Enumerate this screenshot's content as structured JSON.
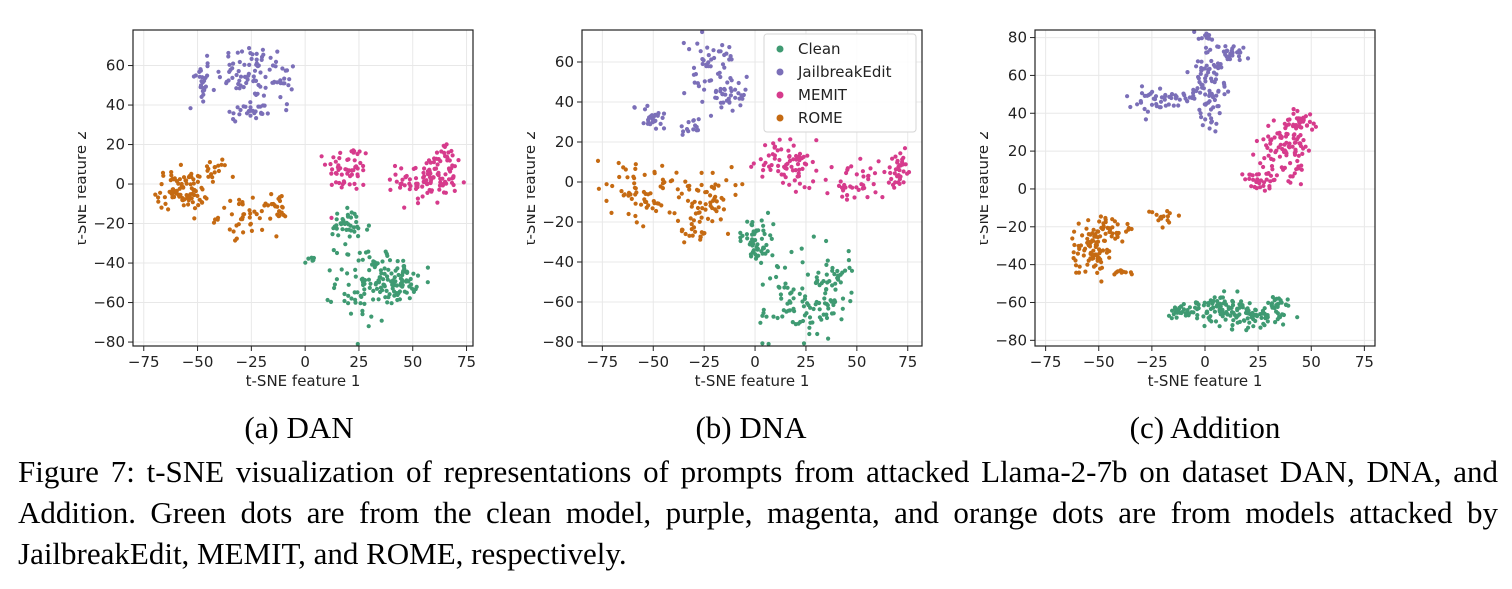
{
  "colors": {
    "clean": "#3f9a72",
    "jailbreak": "#7b6fb8",
    "memit": "#d63b8c",
    "rome": "#c56a12"
  },
  "caption": "Figure 7: t-SNE visualization of representations of prompts from attacked Llama-2-7b on dataset DAN, DNA, and Addition. Green dots are from the clean model, purple, magenta, and orange dots are from models attacked by JailbreakEdit, MEMIT, and ROME, respectively.",
  "chart_data": [
    {
      "type": "scatter",
      "subcaption": "(a) DAN",
      "xlabel": "t-SNE feature 1",
      "ylabel": "t-SNE feature 2",
      "xlim": [
        -80,
        78
      ],
      "ylim": [
        -82,
        78
      ],
      "xticks": [
        -75,
        -50,
        -25,
        0,
        25,
        50,
        75
      ],
      "yticks": [
        -80,
        -60,
        -40,
        -20,
        0,
        20,
        40,
        60
      ],
      "grid": true,
      "legend": null,
      "clusters": [
        {
          "series": "JailbreakEdit",
          "cx": -48,
          "cy": 52,
          "sx": 2,
          "sy": 6,
          "n": 25
        },
        {
          "series": "JailbreakEdit",
          "cx": -25,
          "cy": 57,
          "sx": 8,
          "sy": 7,
          "n": 70
        },
        {
          "series": "JailbreakEdit",
          "cx": -25,
          "cy": 37,
          "sx": 7,
          "sy": 3,
          "n": 30
        },
        {
          "series": "JailbreakEdit",
          "cx": -10,
          "cy": 50,
          "sx": 3,
          "sy": 7,
          "n": 15
        },
        {
          "series": "MEMIT",
          "cx": 20,
          "cy": 8,
          "sx": 5,
          "sy": 6,
          "n": 55
        },
        {
          "series": "MEMIT",
          "cx": 57,
          "cy": 2,
          "sx": 7,
          "sy": 6,
          "n": 95
        },
        {
          "series": "MEMIT",
          "cx": 65,
          "cy": 12,
          "sx": 3,
          "sy": 4,
          "n": 20
        },
        {
          "series": "ROME",
          "cx": -57,
          "cy": -3,
          "sx": 6,
          "sy": 5,
          "n": 90
        },
        {
          "series": "ROME",
          "cx": -42,
          "cy": 7,
          "sx": 3,
          "sy": 3,
          "n": 15
        },
        {
          "series": "ROME",
          "cx": -26,
          "cy": -16,
          "sx": 7,
          "sy": 5,
          "n": 45
        },
        {
          "series": "ROME",
          "cx": -11,
          "cy": -13,
          "sx": 2,
          "sy": 3,
          "n": 15
        },
        {
          "series": "Clean",
          "cx": 20,
          "cy": -22,
          "sx": 5,
          "sy": 5,
          "n": 40
        },
        {
          "series": "Clean",
          "cx": 42,
          "cy": -49,
          "sx": 5,
          "sy": 5,
          "n": 85
        },
        {
          "series": "Clean",
          "cx": 28,
          "cy": -50,
          "sx": 7,
          "sy": 10,
          "n": 70
        },
        {
          "series": "Clean",
          "cx": 2,
          "cy": -39,
          "sx": 1,
          "sy": 1,
          "n": 6
        }
      ]
    },
    {
      "type": "scatter",
      "subcaption": "(b) DNA",
      "xlabel": "t-SNE feature 1",
      "ylabel": "t-SNE feature 2",
      "xlim": [
        -85,
        82
      ],
      "ylim": [
        -82,
        76
      ],
      "xticks": [
        -75,
        -50,
        -25,
        0,
        25,
        50,
        75
      ],
      "yticks": [
        -80,
        -60,
        -40,
        -20,
        0,
        20,
        40,
        60
      ],
      "grid": true,
      "legend": {
        "position": "top-right",
        "entries": [
          "Clean",
          "JailbreakEdit",
          "MEMIT",
          "ROME"
        ]
      },
      "clusters": [
        {
          "series": "JailbreakEdit",
          "cx": -50,
          "cy": 32,
          "sx": 3,
          "sy": 3,
          "n": 30
        },
        {
          "series": "JailbreakEdit",
          "cx": -32,
          "cy": 28,
          "sx": 3,
          "sy": 3,
          "n": 15
        },
        {
          "series": "JailbreakEdit",
          "cx": -22,
          "cy": 60,
          "sx": 6,
          "sy": 6,
          "n": 40
        },
        {
          "series": "JailbreakEdit",
          "cx": -13,
          "cy": 44,
          "sx": 6,
          "sy": 5,
          "n": 40
        },
        {
          "series": "MEMIT",
          "cx": 17,
          "cy": 10,
          "sx": 8,
          "sy": 6,
          "n": 70
        },
        {
          "series": "MEMIT",
          "cx": 50,
          "cy": 0,
          "sx": 8,
          "sy": 5,
          "n": 40
        },
        {
          "series": "MEMIT",
          "cx": 70,
          "cy": 8,
          "sx": 4,
          "sy": 5,
          "n": 35
        },
        {
          "series": "ROME",
          "cx": -55,
          "cy": -5,
          "sx": 12,
          "sy": 8,
          "n": 70
        },
        {
          "series": "ROME",
          "cx": -22,
          "cy": -10,
          "sx": 6,
          "sy": 8,
          "n": 55
        },
        {
          "series": "ROME",
          "cx": -30,
          "cy": -25,
          "sx": 3,
          "sy": 4,
          "n": 15
        },
        {
          "series": "Clean",
          "cx": 2,
          "cy": -30,
          "sx": 4,
          "sy": 5,
          "n": 55
        },
        {
          "series": "Clean",
          "cx": 25,
          "cy": -60,
          "sx": 10,
          "sy": 10,
          "n": 90
        },
        {
          "series": "Clean",
          "cx": 38,
          "cy": -48,
          "sx": 5,
          "sy": 8,
          "n": 40
        }
      ]
    },
    {
      "type": "scatter",
      "subcaption": "(c) Addition",
      "xlabel": "t-SNE feature 1",
      "ylabel": "t-SNE feature 2",
      "xlim": [
        -80,
        80
      ],
      "ylim": [
        -83,
        84
      ],
      "xticks": [
        -75,
        -50,
        -25,
        0,
        25,
        50,
        75
      ],
      "yticks": [
        -80,
        -60,
        -40,
        -20,
        0,
        20,
        40,
        60,
        80
      ],
      "grid": true,
      "legend": null,
      "clusters": [
        {
          "series": "JailbreakEdit",
          "cx": -20,
          "cy": 48,
          "sx": 10,
          "sy": 4,
          "n": 50
        },
        {
          "series": "JailbreakEdit",
          "cx": 2,
          "cy": 55,
          "sx": 4,
          "sy": 11,
          "n": 90
        },
        {
          "series": "JailbreakEdit",
          "cx": 13,
          "cy": 72,
          "sx": 3,
          "sy": 2,
          "n": 25
        },
        {
          "series": "JailbreakEdit",
          "cx": 0,
          "cy": 80,
          "sx": 2,
          "sy": 1,
          "n": 10
        },
        {
          "series": "MEMIT",
          "cx": 37,
          "cy": 20,
          "sx": 6,
          "sy": 8,
          "n": 90
        },
        {
          "series": "MEMIT",
          "cx": 45,
          "cy": 35,
          "sx": 4,
          "sy": 3,
          "n": 35
        },
        {
          "series": "MEMIT",
          "cx": 25,
          "cy": 5,
          "sx": 5,
          "sy": 3,
          "n": 30
        },
        {
          "series": "ROME",
          "cx": -53,
          "cy": -30,
          "sx": 5,
          "sy": 8,
          "n": 95
        },
        {
          "series": "ROME",
          "cx": -42,
          "cy": -22,
          "sx": 4,
          "sy": 3,
          "n": 25
        },
        {
          "series": "ROME",
          "cx": -38,
          "cy": -44,
          "sx": 2,
          "sy": 1,
          "n": 10
        },
        {
          "series": "ROME",
          "cx": -20,
          "cy": -15,
          "sx": 3,
          "sy": 3,
          "n": 15
        },
        {
          "series": "Clean",
          "cx": -12,
          "cy": -65,
          "sx": 3,
          "sy": 2,
          "n": 25
        },
        {
          "series": "Clean",
          "cx": 8,
          "cy": -63,
          "sx": 8,
          "sy": 4,
          "n": 90
        },
        {
          "series": "Clean",
          "cx": 22,
          "cy": -68,
          "sx": 7,
          "sy": 3,
          "n": 55
        },
        {
          "series": "Clean",
          "cx": 35,
          "cy": -62,
          "sx": 3,
          "sy": 4,
          "n": 25
        }
      ]
    }
  ]
}
